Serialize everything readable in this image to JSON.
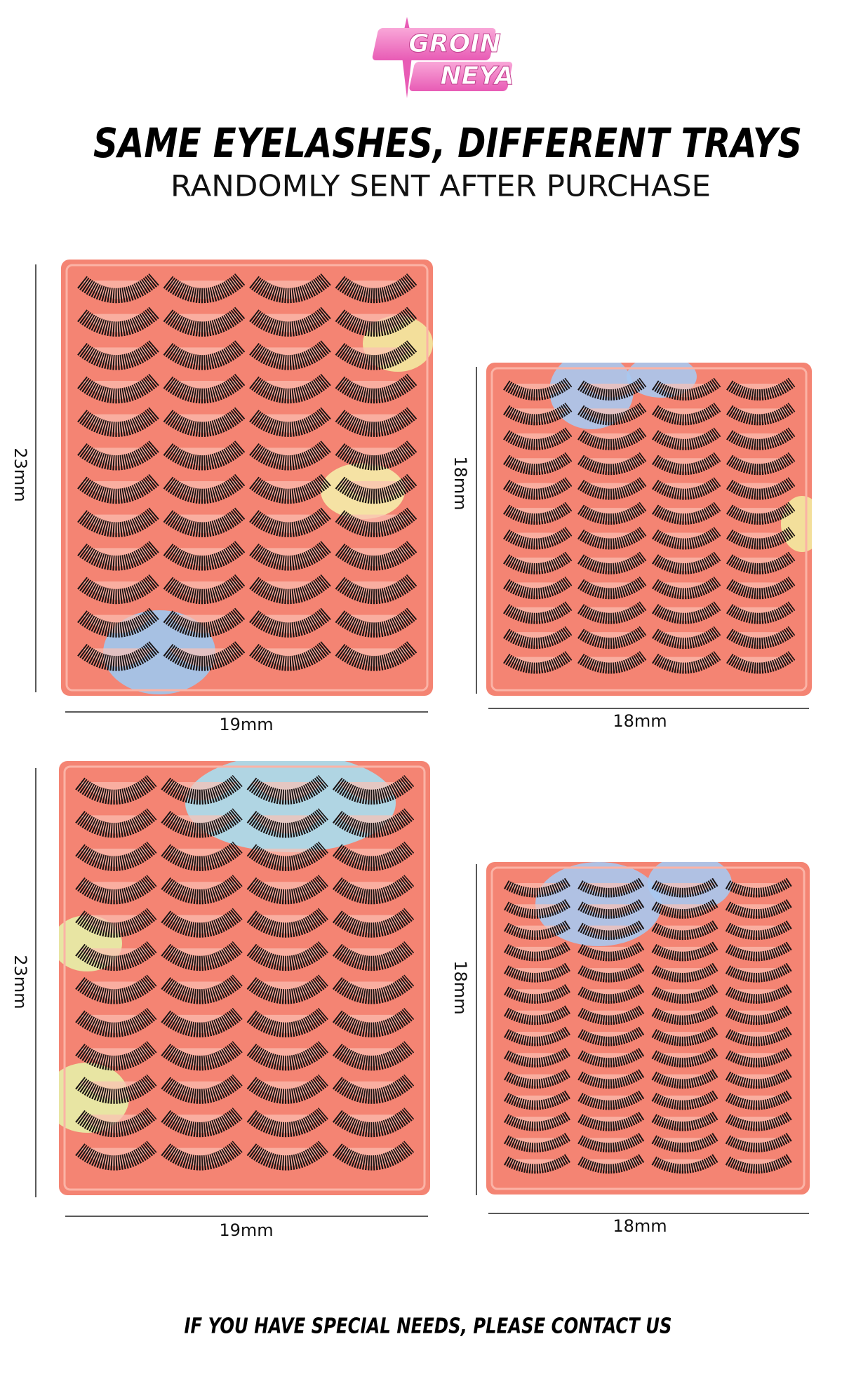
{
  "brand": {
    "line1": "GROIN",
    "line2": "NEYA"
  },
  "header": {
    "title": "SAME EYELASHES, DIFFERENT TRAYS",
    "subtitle": "RANDOMLY SENT AFTER PURCHASE"
  },
  "trays": [
    {
      "height_label": "23mm",
      "width_label": "19mm"
    },
    {
      "height_label": "18mm",
      "width_label": "18mm"
    },
    {
      "height_label": "23mm",
      "width_label": "19mm"
    },
    {
      "height_label": "18mm",
      "width_label": "18mm"
    }
  ],
  "footer": {
    "note": "IF YOU HAVE SPECIAL NEEDS, PLEASE CONTACT US"
  }
}
